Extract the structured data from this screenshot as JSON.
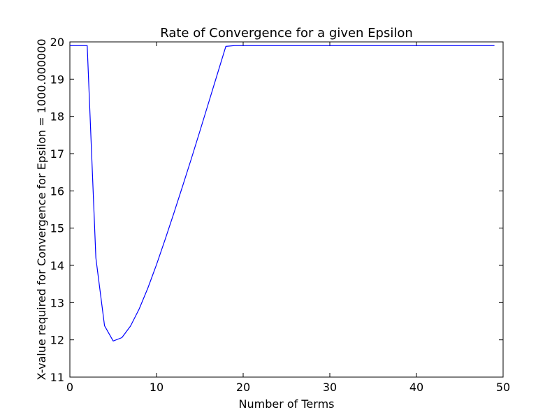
{
  "chart_data": {
    "type": "line",
    "title": "Rate of Convergence for a given Epsilon",
    "xlabel": "Number of Terms",
    "ylabel": "X-value required for Convergence for Epsilon = 1000.000000",
    "xlim": [
      0,
      50
    ],
    "ylim": [
      11,
      20
    ],
    "xticks": [
      "0",
      "10",
      "20",
      "30",
      "40",
      "50"
    ],
    "yticks": [
      "11",
      "12",
      "13",
      "14",
      "15",
      "16",
      "17",
      "18",
      "19",
      "20"
    ],
    "grid": false,
    "series": [
      {
        "color": "#0000ff",
        "x": [
          0,
          1,
          2,
          3,
          4,
          5,
          6,
          7,
          8,
          9,
          10,
          11,
          12,
          13,
          14,
          15,
          16,
          17,
          18,
          19,
          20,
          21,
          22,
          23,
          24,
          25,
          26,
          27,
          28,
          29,
          30,
          31,
          32,
          33,
          34,
          35,
          36,
          37,
          38,
          39,
          40,
          41,
          42,
          43,
          44,
          45,
          46,
          47,
          48,
          49
        ],
        "y": [
          19.9,
          19.9,
          19.9,
          14.2,
          12.38,
          11.97,
          12.06,
          12.37,
          12.83,
          13.39,
          14.02,
          14.7,
          15.4,
          16.12,
          16.85,
          17.6,
          18.36,
          19.12,
          19.88,
          19.9,
          19.9,
          19.9,
          19.9,
          19.9,
          19.9,
          19.9,
          19.9,
          19.9,
          19.9,
          19.9,
          19.9,
          19.9,
          19.9,
          19.9,
          19.9,
          19.9,
          19.9,
          19.9,
          19.9,
          19.9,
          19.9,
          19.9,
          19.9,
          19.9,
          19.9,
          19.9,
          19.9,
          19.9,
          19.9,
          19.9
        ]
      }
    ]
  }
}
